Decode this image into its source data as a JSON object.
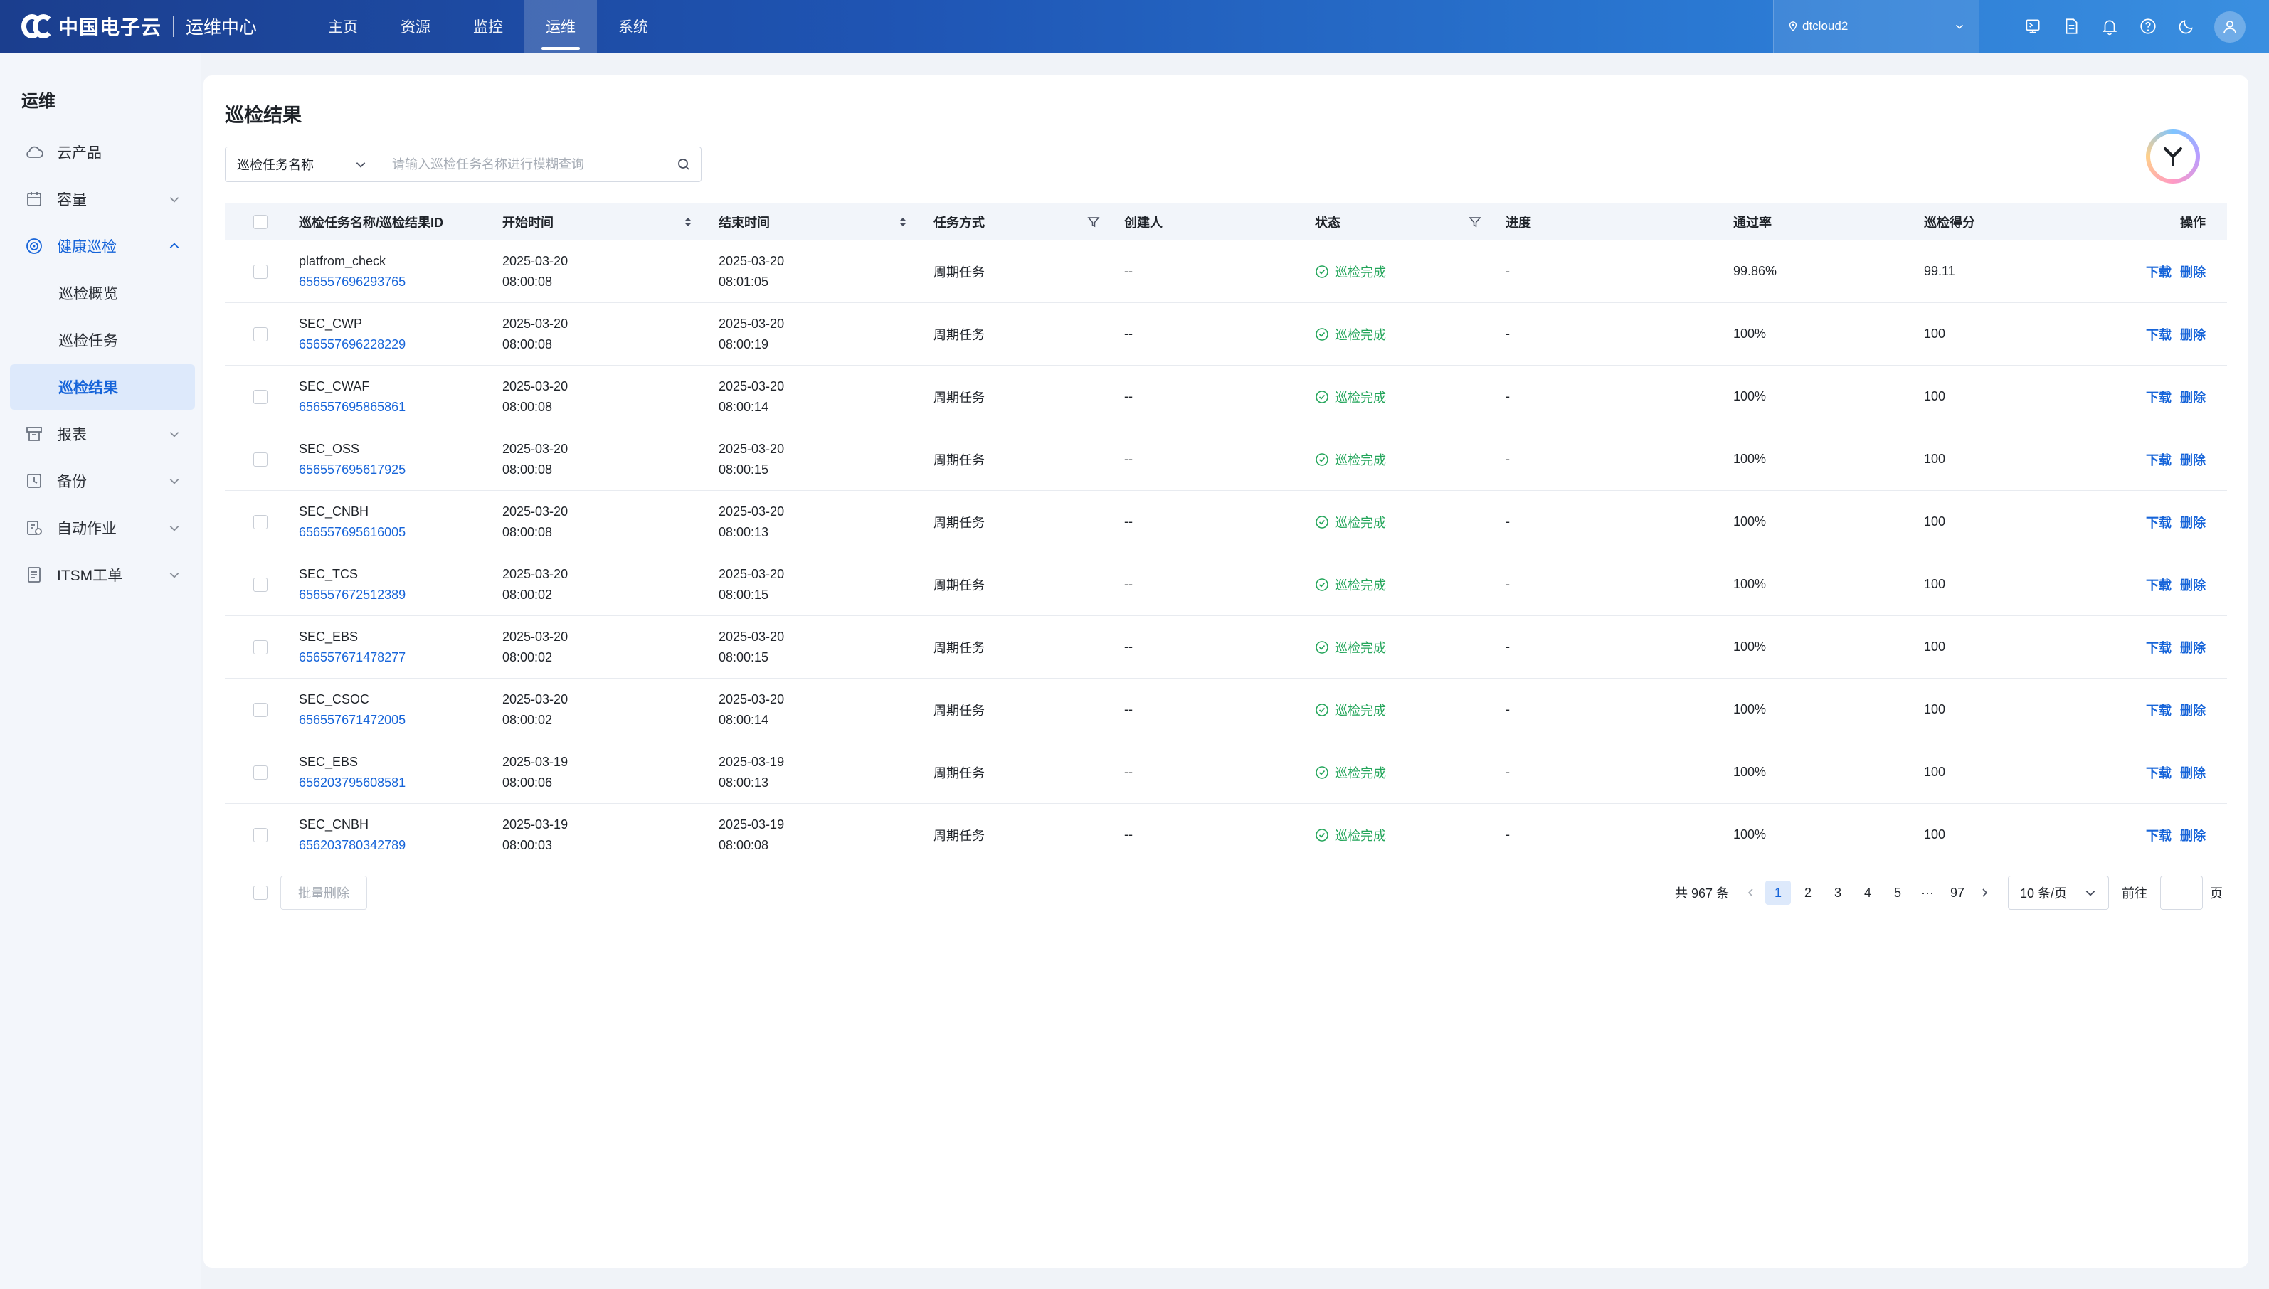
{
  "app": {
    "brand": "中国电子云",
    "module": "运维中心"
  },
  "topnav": [
    {
      "label": "主页",
      "active": false
    },
    {
      "label": "资源",
      "active": false
    },
    {
      "label": "监控",
      "active": false
    },
    {
      "label": "运维",
      "active": true
    },
    {
      "label": "系统",
      "active": false
    }
  ],
  "region": {
    "label": "dtcloud2"
  },
  "sidebar": {
    "title": "运维",
    "items": [
      {
        "label": "云产品"
      },
      {
        "label": "容量"
      },
      {
        "label": "健康巡检"
      },
      {
        "label": "报表"
      },
      {
        "label": "备份"
      },
      {
        "label": "自动作业"
      },
      {
        "label": "ITSM工单"
      }
    ],
    "sub_items": [
      {
        "label": "巡检概览"
      },
      {
        "label": "巡检任务"
      },
      {
        "label": "巡检结果"
      }
    ]
  },
  "page": {
    "title": "巡检结果"
  },
  "search": {
    "field": "巡检任务名称",
    "placeholder": "请输入巡检任务名称进行模糊查询",
    "value": ""
  },
  "table": {
    "headers": {
      "name": "巡检任务名称/巡检结果ID",
      "start": "开始时间",
      "end": "结束时间",
      "mode": "任务方式",
      "creator": "创建人",
      "status": "状态",
      "progress": "进度",
      "rate": "通过率",
      "score": "巡检得分",
      "ops": "操作"
    },
    "rows": [
      {
        "name": "platfrom_check",
        "id": "656557696293765",
        "start_date": "2025-03-20",
        "start_time": "08:00:08",
        "end_date": "2025-03-20",
        "end_time": "08:01:05",
        "mode": "周期任务",
        "creator": "--",
        "status": "巡检完成",
        "progress": "-",
        "rate": "99.86%",
        "score": "99.11",
        "op_download": "下载",
        "op_delete": "删除"
      },
      {
        "name": "SEC_CWP",
        "id": "656557696228229",
        "start_date": "2025-03-20",
        "start_time": "08:00:08",
        "end_date": "2025-03-20",
        "end_time": "08:00:19",
        "mode": "周期任务",
        "creator": "--",
        "status": "巡检完成",
        "progress": "-",
        "rate": "100%",
        "score": "100",
        "op_download": "下载",
        "op_delete": "删除"
      },
      {
        "name": "SEC_CWAF",
        "id": "656557695865861",
        "start_date": "2025-03-20",
        "start_time": "08:00:08",
        "end_date": "2025-03-20",
        "end_time": "08:00:14",
        "mode": "周期任务",
        "creator": "--",
        "status": "巡检完成",
        "progress": "-",
        "rate": "100%",
        "score": "100",
        "op_download": "下载",
        "op_delete": "删除"
      },
      {
        "name": "SEC_OSS",
        "id": "656557695617925",
        "start_date": "2025-03-20",
        "start_time": "08:00:08",
        "end_date": "2025-03-20",
        "end_time": "08:00:15",
        "mode": "周期任务",
        "creator": "--",
        "status": "巡检完成",
        "progress": "-",
        "rate": "100%",
        "score": "100",
        "op_download": "下载",
        "op_delete": "删除"
      },
      {
        "name": "SEC_CNBH",
        "id": "656557695616005",
        "start_date": "2025-03-20",
        "start_time": "08:00:08",
        "end_date": "2025-03-20",
        "end_time": "08:00:13",
        "mode": "周期任务",
        "creator": "--",
        "status": "巡检完成",
        "progress": "-",
        "rate": "100%",
        "score": "100",
        "op_download": "下载",
        "op_delete": "删除"
      },
      {
        "name": "SEC_TCS",
        "id": "656557672512389",
        "start_date": "2025-03-20",
        "start_time": "08:00:02",
        "end_date": "2025-03-20",
        "end_time": "08:00:15",
        "mode": "周期任务",
        "creator": "--",
        "status": "巡检完成",
        "progress": "-",
        "rate": "100%",
        "score": "100",
        "op_download": "下载",
        "op_delete": "删除"
      },
      {
        "name": "SEC_EBS",
        "id": "656557671478277",
        "start_date": "2025-03-20",
        "start_time": "08:00:02",
        "end_date": "2025-03-20",
        "end_time": "08:00:15",
        "mode": "周期任务",
        "creator": "--",
        "status": "巡检完成",
        "progress": "-",
        "rate": "100%",
        "score": "100",
        "op_download": "下载",
        "op_delete": "删除"
      },
      {
        "name": "SEC_CSOC",
        "id": "656557671472005",
        "start_date": "2025-03-20",
        "start_time": "08:00:02",
        "end_date": "2025-03-20",
        "end_time": "08:00:14",
        "mode": "周期任务",
        "creator": "--",
        "status": "巡检完成",
        "progress": "-",
        "rate": "100%",
        "score": "100",
        "op_download": "下载",
        "op_delete": "删除"
      },
      {
        "name": "SEC_EBS",
        "id": "656203795608581",
        "start_date": "2025-03-19",
        "start_time": "08:00:06",
        "end_date": "2025-03-19",
        "end_time": "08:00:13",
        "mode": "周期任务",
        "creator": "--",
        "status": "巡检完成",
        "progress": "-",
        "rate": "100%",
        "score": "100",
        "op_download": "下载",
        "op_delete": "删除"
      },
      {
        "name": "SEC_CNBH",
        "id": "656203780342789",
        "start_date": "2025-03-19",
        "start_time": "08:00:03",
        "end_date": "2025-03-19",
        "end_time": "08:00:08",
        "mode": "周期任务",
        "creator": "--",
        "status": "巡检完成",
        "progress": "-",
        "rate": "100%",
        "score": "100",
        "op_download": "下载",
        "op_delete": "删除"
      }
    ]
  },
  "footer": {
    "batch_delete": "批量删除",
    "total": "共 967 条",
    "pages": [
      "1",
      "2",
      "3",
      "4",
      "5"
    ],
    "ellipsis": "···",
    "last_page": "97",
    "current_page": "1",
    "page_size": "10 条/页",
    "goto_label": "前往",
    "page_unit": "页"
  },
  "colors": {
    "primary": "#1664d9",
    "success": "#23a55a",
    "topbar_start": "#1b3e8e",
    "topbar_end": "#3a8fe0"
  }
}
